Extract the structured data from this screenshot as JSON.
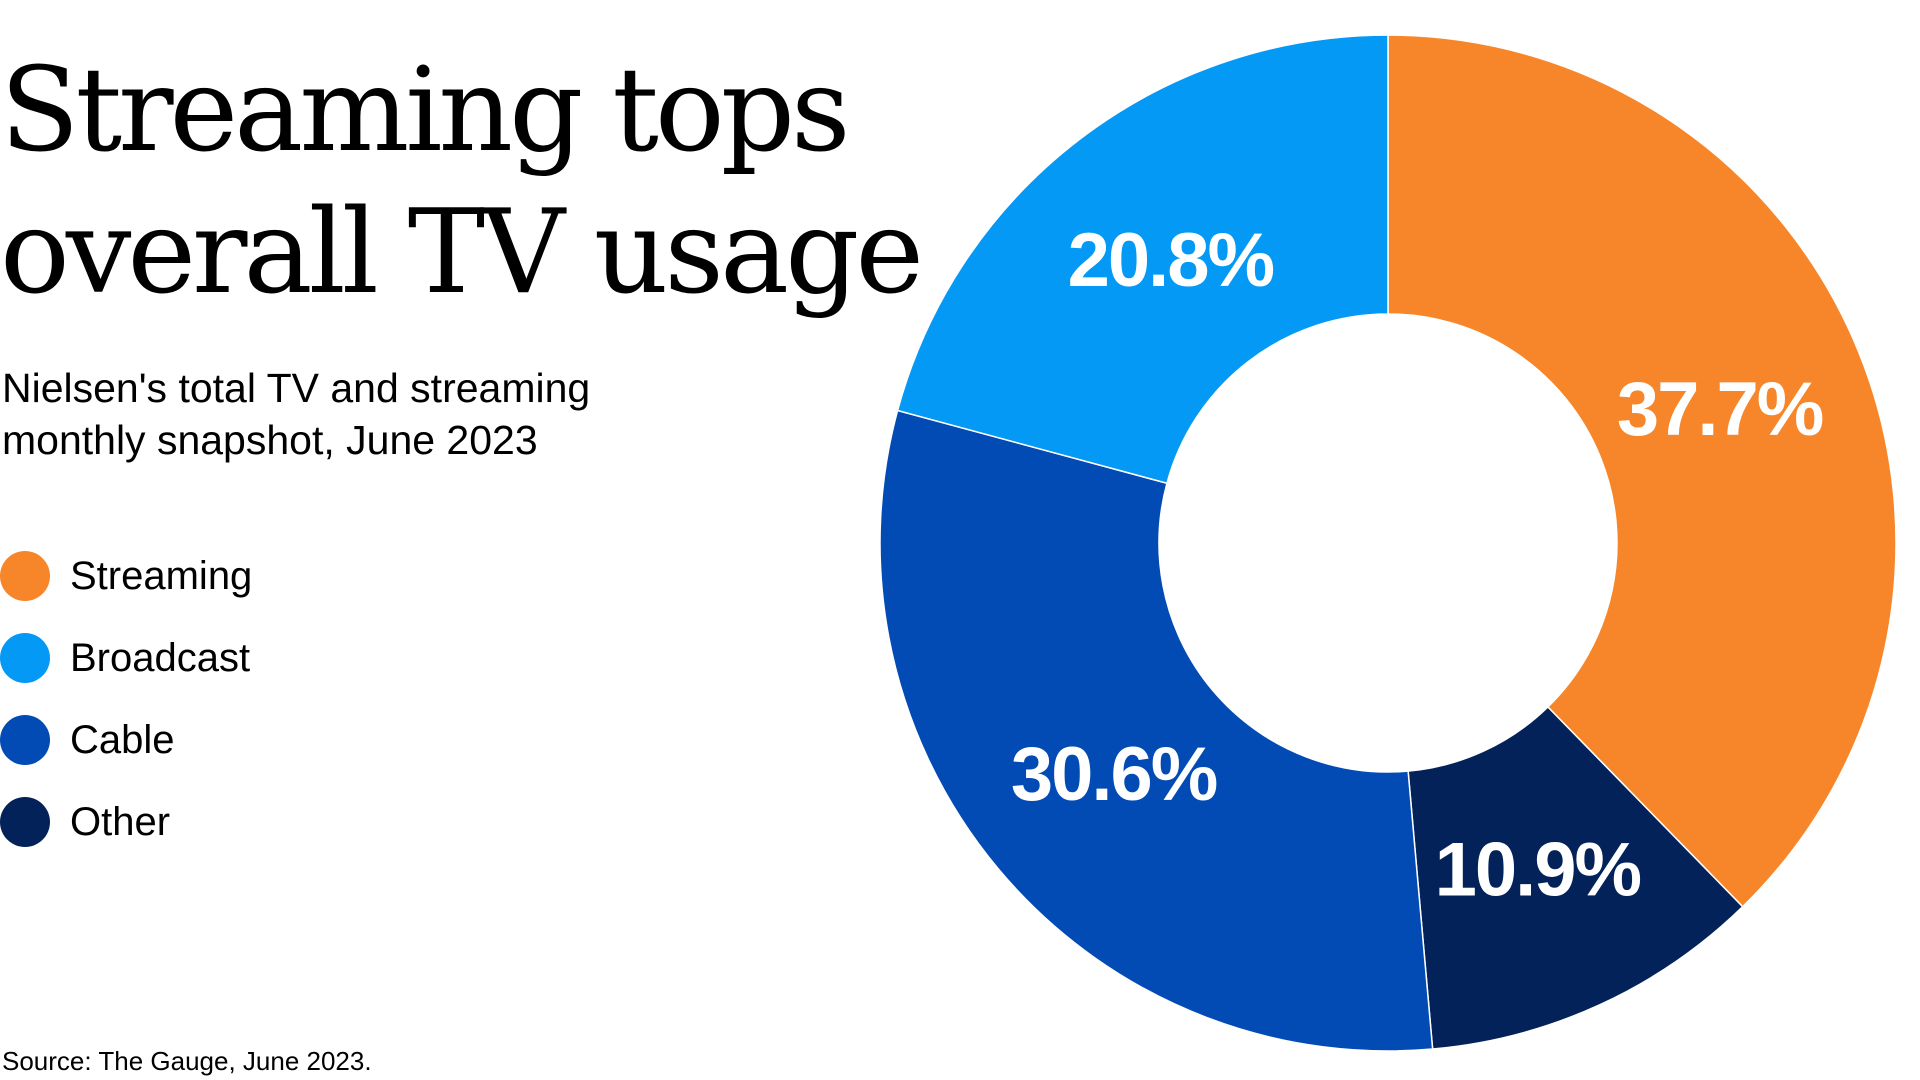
{
  "title_lines": [
    "Streaming tops",
    "overall TV usage"
  ],
  "subtitle_lines": [
    "Nielsen's total TV and streaming",
    "monthly snapshot, June 2023"
  ],
  "source": "Source: The Gauge, June 2023.",
  "chart_data": {
    "type": "pie",
    "variant": "donut",
    "start": "12 o'clock, clockwise",
    "legend_position": "left",
    "categories": [
      "Streaming",
      "Other",
      "Cable",
      "Broadcast"
    ],
    "values": [
      37.7,
      10.9,
      30.6,
      20.8
    ],
    "labels": [
      "37.7%",
      "10.9%",
      "30.6%",
      "20.8%"
    ],
    "colors": [
      "#F7862A",
      "#032259",
      "#024BB5",
      "#0399F5"
    ],
    "legend": [
      {
        "label": "Streaming",
        "color": "#F7862A"
      },
      {
        "label": "Broadcast",
        "color": "#0399F5"
      },
      {
        "label": "Cable",
        "color": "#024BB5"
      },
      {
        "label": "Other",
        "color": "#032259"
      }
    ]
  }
}
